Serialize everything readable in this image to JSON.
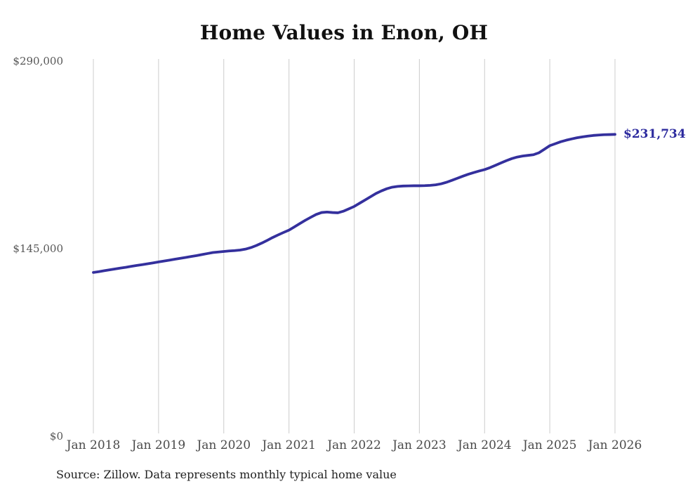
{
  "chart_data": {
    "type": "line",
    "title": "Home Values in Enon, OH",
    "source": "Source: Zillow. Data represents monthly typical home value",
    "end_label": "$231,734",
    "final_value": 231734,
    "frequency": "monthly",
    "x_start": "Jan 2018",
    "x_end": "Jan 2026",
    "ylim": [
      0,
      290000
    ],
    "grid": "vertical-only",
    "legend": "none",
    "line_color": "#34309d",
    "end_label_color": "#2c2a9e",
    "grid_color": "#cccccc",
    "x_tick_labels": [
      "Jan 2018",
      "Jan 2019",
      "Jan 2020",
      "Jan 2021",
      "Jan 2022",
      "Jan 2023",
      "Jan 2024",
      "Jan 2025",
      "Jan 2026"
    ],
    "y_ticks": [
      {
        "value": 290000,
        "label": "$290,000"
      },
      {
        "value": 145000,
        "label": "$145,000"
      },
      {
        "value": 0,
        "label": "$0"
      }
    ],
    "values": [
      125000,
      125600,
      126300,
      127000,
      127700,
      128400,
      129000,
      129700,
      130400,
      131000,
      131700,
      132400,
      133100,
      133800,
      134500,
      135200,
      135900,
      136600,
      137300,
      138000,
      138800,
      139600,
      140400,
      140800,
      141200,
      141600,
      141900,
      142300,
      143000,
      144200,
      145800,
      147700,
      149800,
      152000,
      154000,
      155900,
      157700,
      160200,
      162800,
      165300,
      167600,
      169800,
      171300,
      171700,
      171300,
      171100,
      172300,
      174100,
      176000,
      178500,
      181000,
      183500,
      186000,
      188000,
      189700,
      190900,
      191500,
      191800,
      191900,
      192000,
      192000,
      192100,
      192300,
      192700,
      193500,
      194700,
      196200,
      197800,
      199400,
      200900,
      202200,
      203400,
      204500,
      206000,
      207800,
      209600,
      211400,
      213000,
      214200,
      215000,
      215500,
      216000,
      217500,
      220200,
      223000,
      224500,
      226000,
      227200,
      228200,
      229100,
      229800,
      230400,
      230900,
      231200,
      231500,
      231600,
      231734
    ]
  }
}
